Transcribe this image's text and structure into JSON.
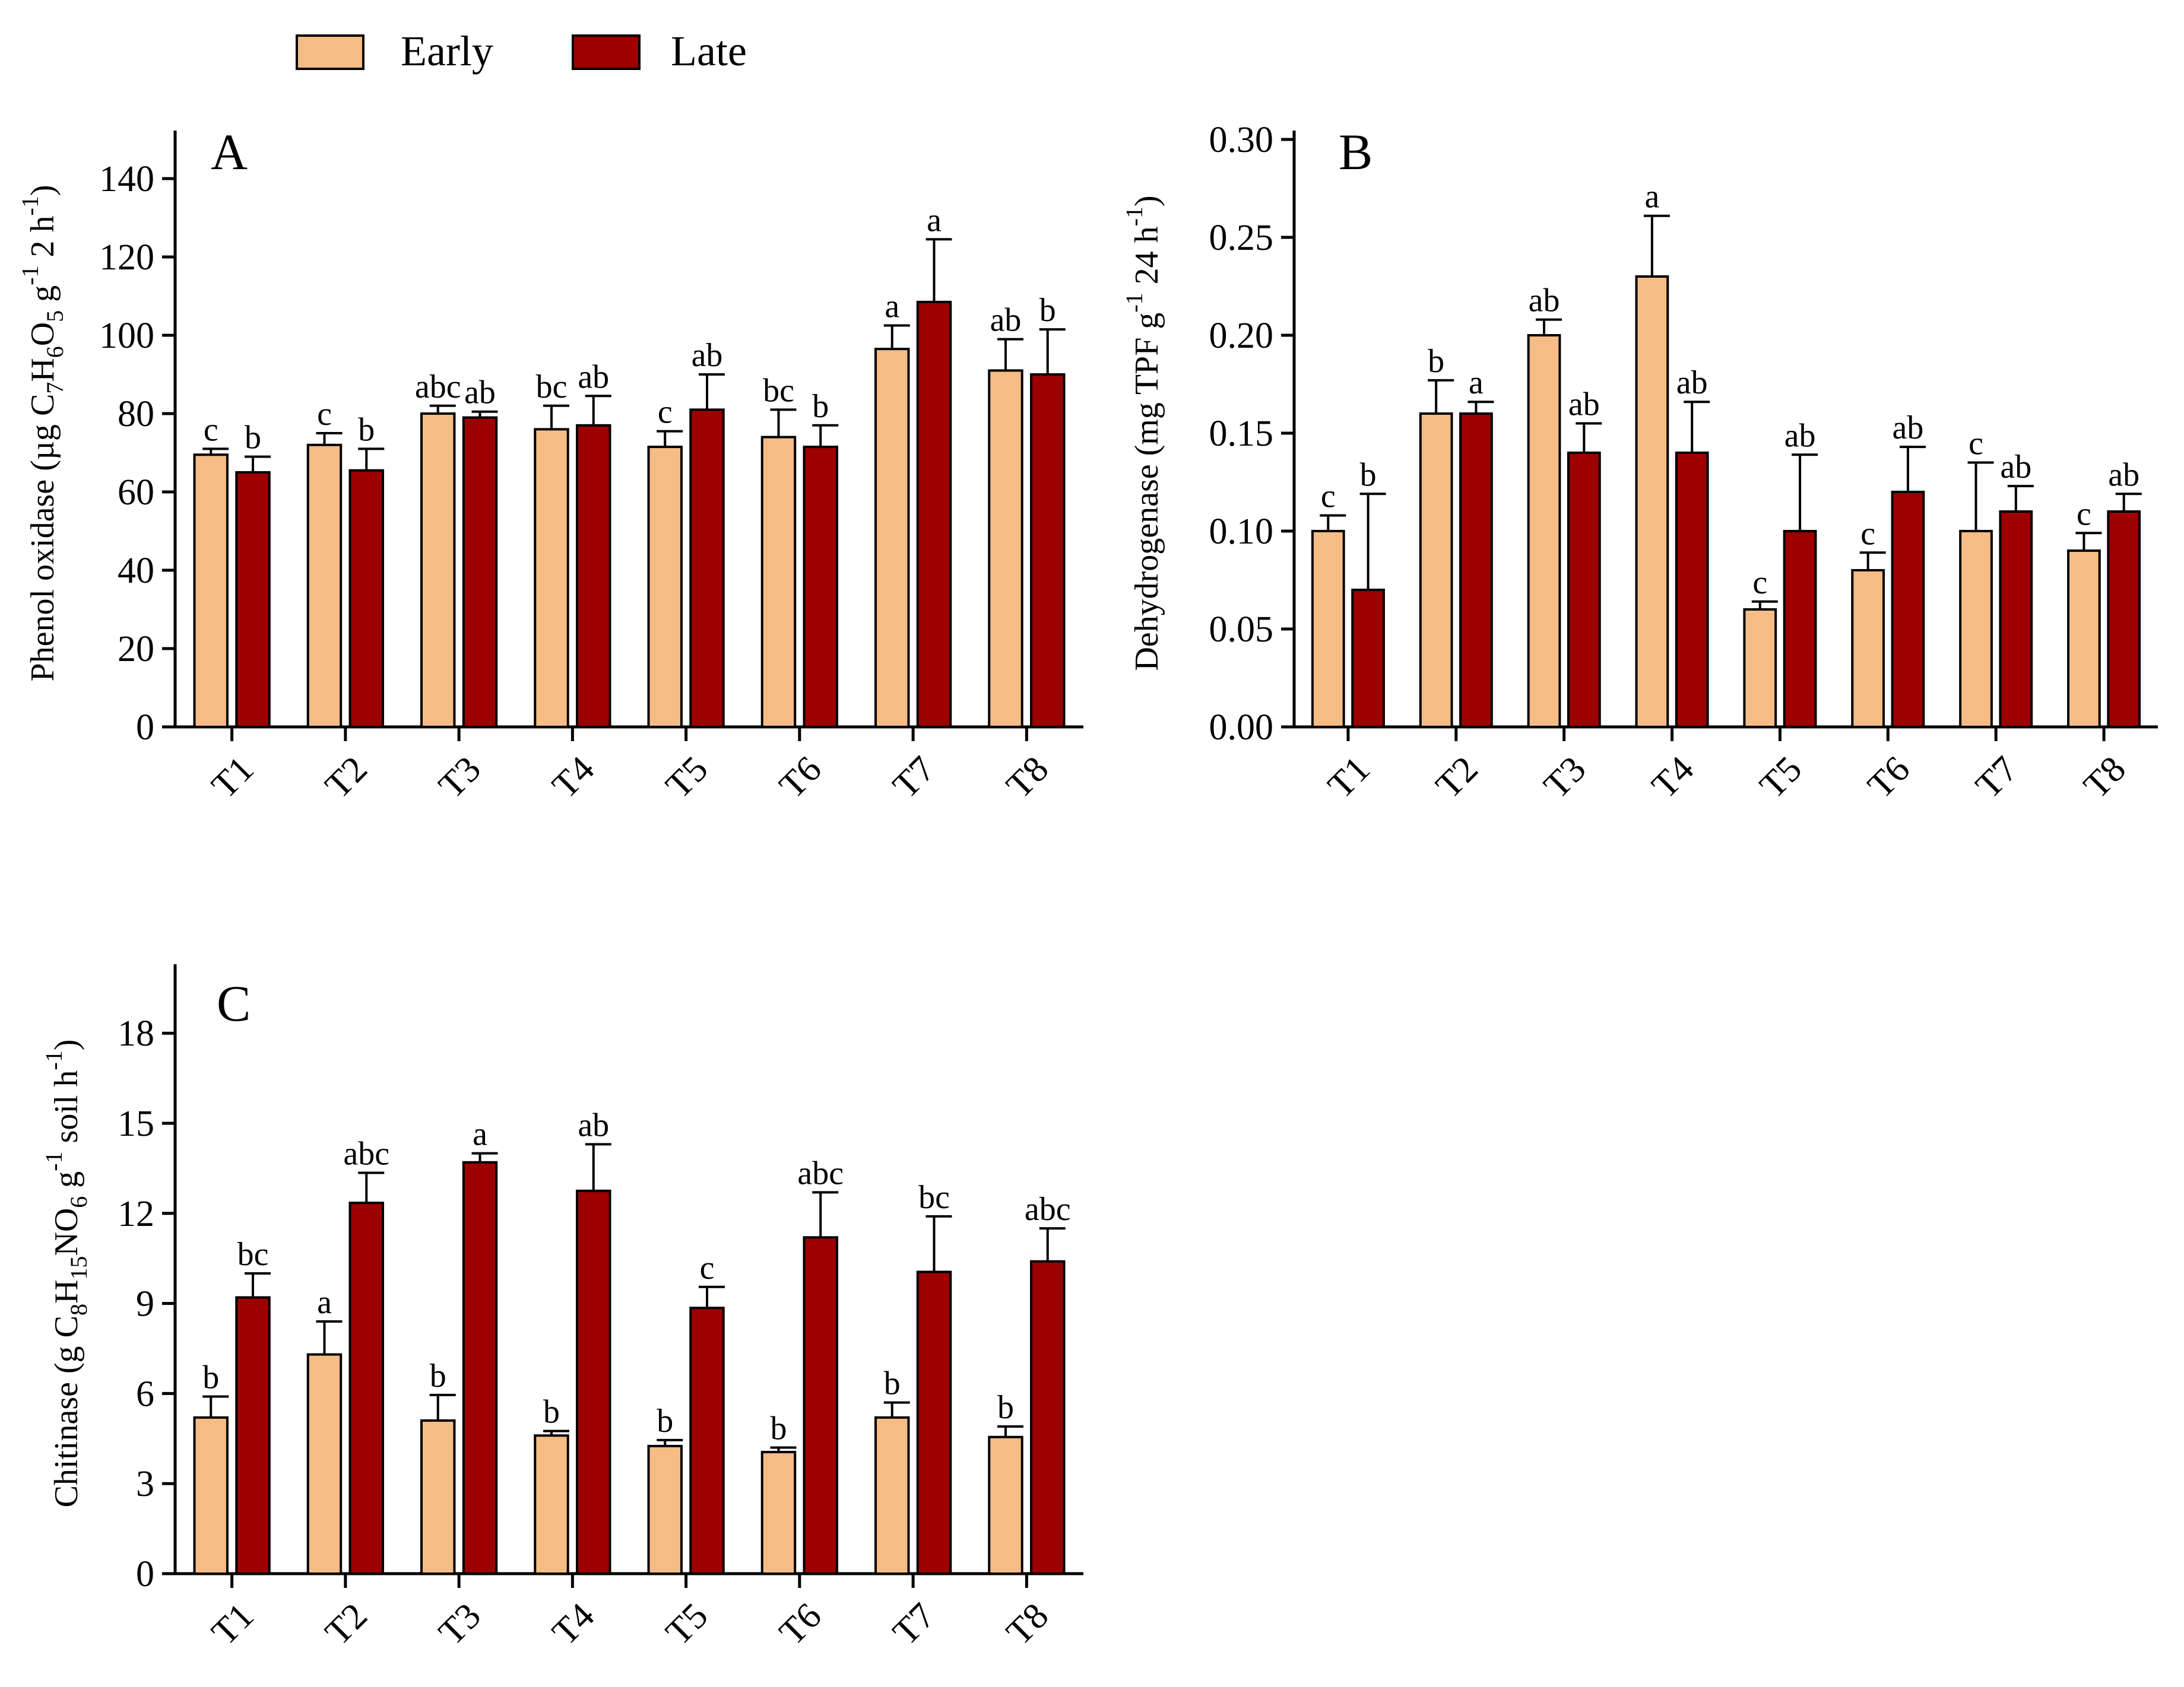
{
  "colors": {
    "early": "#F6BC85",
    "late": "#9C0000",
    "axis": "#000000"
  },
  "legend": {
    "position": "top-left",
    "items": [
      {
        "label": "Early",
        "color": "#F6BC85"
      },
      {
        "label": "Late",
        "color": "#9C0000"
      }
    ]
  },
  "chart_data": [
    {
      "type": "bar",
      "panel_label": "A",
      "title": "",
      "xlabel": "",
      "ylabel": "Phenol oxidase (µg C7H6O5 g-1 2 h-1)",
      "ylabel_parts": [
        {
          "t": "Phenol oxidase (µg C"
        },
        {
          "t": "7",
          "s": "sub"
        },
        {
          "t": "H"
        },
        {
          "t": "6",
          "s": "sub"
        },
        {
          "t": "O"
        },
        {
          "t": "5",
          "s": "sub"
        },
        {
          "t": " g"
        },
        {
          "t": "-1",
          "s": "sup"
        },
        {
          "t": " 2 h"
        },
        {
          "t": "-1",
          "s": "sup"
        },
        {
          "t": ")"
        }
      ],
      "ylim": [
        0,
        150
      ],
      "yticks": [
        0,
        20,
        40,
        60,
        80,
        100,
        120,
        140
      ],
      "ytick_labels": [
        "0",
        "20",
        "40",
        "60",
        "80",
        "100",
        "120",
        "140"
      ],
      "categories": [
        "T1",
        "T2",
        "T3",
        "T4",
        "T5",
        "T6",
        "T7",
        "T8"
      ],
      "series": [
        {
          "name": "Early",
          "values": [
            69.5,
            72,
            80,
            76,
            71.5,
            74,
            96.5,
            91
          ],
          "errors": [
            1.5,
            3,
            2,
            6,
            4,
            7,
            6,
            8
          ],
          "letters": [
            "c",
            "c",
            "abc",
            "bc",
            "c",
            "bc",
            "a",
            "ab"
          ]
        },
        {
          "name": "Late",
          "values": [
            65,
            65.5,
            79,
            77,
            81,
            71.5,
            108.5,
            90
          ],
          "errors": [
            4,
            5.5,
            1.5,
            7.5,
            9,
            5.5,
            16,
            11.5
          ],
          "letters": [
            "b",
            "b",
            "ab",
            "ab",
            "ab",
            "b",
            "a",
            "b"
          ]
        }
      ],
      "grid": false
    },
    {
      "type": "bar",
      "panel_label": "B",
      "title": "",
      "xlabel": "",
      "ylabel": "Dehydrogenase (mg TPF g-1 24 h-1)",
      "ylabel_parts": [
        {
          "t": "Dehydrogenase (mg TPF g"
        },
        {
          "t": "-1",
          "s": "sup"
        },
        {
          "t": " 24 h"
        },
        {
          "t": "-1",
          "s": "sup"
        },
        {
          "t": ")"
        }
      ],
      "ylim": [
        0,
        0.3
      ],
      "yticks": [
        0,
        0.05,
        0.1,
        0.15,
        0.2,
        0.25,
        0.3
      ],
      "ytick_labels": [
        "0.00",
        "0.05",
        "0.10",
        "0.15",
        "0.20",
        "0.25",
        "0.30"
      ],
      "categories": [
        "T1",
        "T2",
        "T3",
        "T4",
        "T5",
        "T6",
        "T7",
        "T8"
      ],
      "series": [
        {
          "name": "Early",
          "values": [
            0.1,
            0.16,
            0.2,
            0.23,
            0.06,
            0.08,
            0.1,
            0.09
          ],
          "errors": [
            0.008,
            0.017,
            0.008,
            0.031,
            0.004,
            0.009,
            0.035,
            0.009
          ],
          "letters": [
            "c",
            "b",
            "ab",
            "a",
            "c",
            "c",
            "c",
            "c"
          ]
        },
        {
          "name": "Late",
          "values": [
            0.07,
            0.16,
            0.14,
            0.14,
            0.1,
            0.12,
            0.11,
            0.11
          ],
          "errors": [
            0.049,
            0.006,
            0.015,
            0.026,
            0.039,
            0.023,
            0.013,
            0.009
          ],
          "letters": [
            "b",
            "a",
            "ab",
            "ab",
            "ab",
            "ab",
            "ab",
            "ab"
          ]
        }
      ],
      "grid": false
    },
    {
      "type": "bar",
      "panel_label": "C",
      "title": "",
      "xlabel": "",
      "ylabel": "Chitinase (g C8H15NO6 g-1 soil h-1)",
      "ylabel_parts": [
        {
          "t": "Chitinase (g C"
        },
        {
          "t": "8",
          "s": "sub"
        },
        {
          "t": "H"
        },
        {
          "t": "15",
          "s": "sub"
        },
        {
          "t": "NO"
        },
        {
          "t": "6",
          "s": "sub"
        },
        {
          "t": " g"
        },
        {
          "t": "-1",
          "s": "sup"
        },
        {
          "t": " soil h"
        },
        {
          "t": "-1",
          "s": "sup"
        },
        {
          "t": ")"
        }
      ],
      "ylim": [
        0,
        20
      ],
      "yticks": [
        0,
        3,
        6,
        9,
        12,
        15,
        18
      ],
      "ytick_labels": [
        "0",
        "3",
        "6",
        "9",
        "12",
        "15",
        "18"
      ],
      "categories": [
        "T1",
        "T2",
        "T3",
        "T4",
        "T5",
        "T6",
        "T7",
        "T8"
      ],
      "series": [
        {
          "name": "Early",
          "values": [
            5.2,
            7.3,
            5.1,
            4.6,
            4.25,
            4.05,
            5.2,
            4.55
          ],
          "errors": [
            0.7,
            1.1,
            0.85,
            0.15,
            0.2,
            0.15,
            0.5,
            0.35
          ],
          "letters": [
            "b",
            "a",
            "b",
            "b",
            "b",
            "b",
            "b",
            "b"
          ]
        },
        {
          "name": "Late",
          "values": [
            9.2,
            12.35,
            13.7,
            12.75,
            8.85,
            11.2,
            10.05,
            10.4
          ],
          "errors": [
            0.8,
            1.0,
            0.3,
            1.55,
            0.7,
            1.5,
            1.85,
            1.1
          ],
          "letters": [
            "bc",
            "abc",
            "a",
            "ab",
            "c",
            "abc",
            "bc",
            "abc"
          ]
        }
      ],
      "grid": false
    }
  ]
}
